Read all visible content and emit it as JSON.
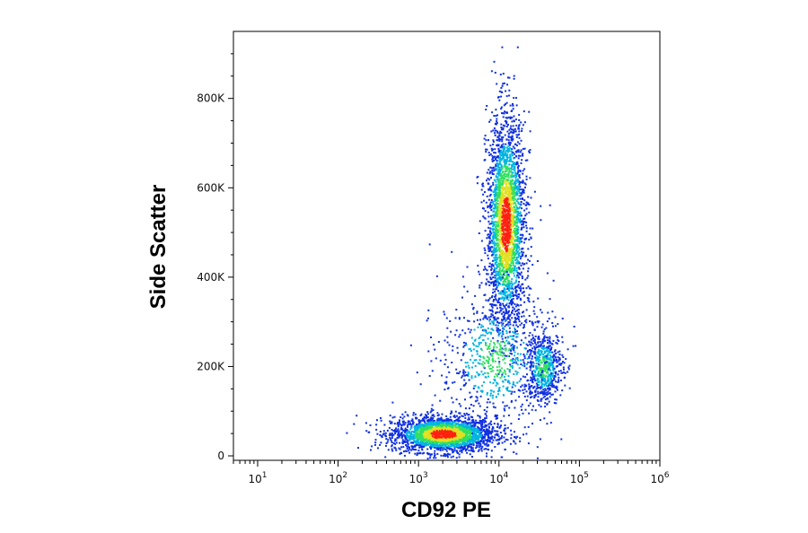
{
  "chart_data": {
    "type": "scatter",
    "style": "flow-cytometry density dot plot (blue-to-red heat coloring)",
    "xlabel": "CD92 PE",
    "ylabel": "Side Scatter",
    "x_scale": "log",
    "xlim": [
      5,
      1000000
    ],
    "ylim": [
      -10000,
      950000
    ],
    "x_ticks": [
      {
        "base": "10",
        "exp": "1",
        "value": 10
      },
      {
        "base": "10",
        "exp": "2",
        "value": 100
      },
      {
        "base": "10",
        "exp": "3",
        "value": 1000
      },
      {
        "base": "10",
        "exp": "4",
        "value": 10000
      },
      {
        "base": "10",
        "exp": "5",
        "value": 100000
      },
      {
        "base": "10",
        "exp": "6",
        "value": 1000000
      }
    ],
    "y_ticks": [
      {
        "label": "0",
        "value": 0
      },
      {
        "label": "200K",
        "value": 200000
      },
      {
        "label": "400K",
        "value": 400000
      },
      {
        "label": "600K",
        "value": 600000
      },
      {
        "label": "800K",
        "value": 800000
      }
    ],
    "populations": [
      {
        "center_x": 2000,
        "center_y": 50000,
        "spread_log10_x": 0.32,
        "spread_y": 20000,
        "points": 2400
      },
      {
        "center_x": 12000,
        "center_y": 520000,
        "spread_log10_x": 0.12,
        "spread_y": 120000,
        "points": 2600
      },
      {
        "center_x": 35000,
        "center_y": 200000,
        "spread_log10_x": 0.12,
        "spread_y": 40000,
        "points": 600
      },
      {
        "center_x": 9000,
        "center_y": 220000,
        "spread_log10_x": 0.35,
        "spread_y": 80000,
        "points": 700
      }
    ],
    "grid": false,
    "legend": "none",
    "colors": {
      "low": "#1030e0",
      "mid_low": "#00b4e0",
      "mid": "#30e060",
      "mid_high": "#e0e020",
      "high": "#ff2010"
    }
  }
}
